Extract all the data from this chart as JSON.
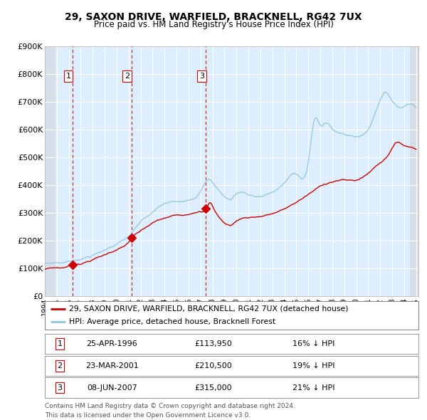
{
  "title": "29, SAXON DRIVE, WARFIELD, BRACKNELL, RG42 7UX",
  "subtitle": "Price paid vs. HM Land Registry's House Price Index (HPI)",
  "footnote1": "Contains HM Land Registry data © Crown copyright and database right 2024.",
  "footnote2": "This data is licensed under the Open Government Licence v3.0.",
  "legend_line1": "29, SAXON DRIVE, WARFIELD, BRACKNELL, RG42 7UX (detached house)",
  "legend_line2": "HPI: Average price, detached house, Bracknell Forest",
  "sales": [
    {
      "num": 1,
      "date": "25-APR-1996",
      "price": 113950,
      "pct": "16%",
      "dir": "↓",
      "x": 1996.31
    },
    {
      "num": 2,
      "date": "23-MAR-2001",
      "price": 210500,
      "pct": "19%",
      "dir": "↓",
      "x": 2001.23
    },
    {
      "num": 3,
      "date": "08-JUN-2007",
      "price": 315000,
      "pct": "21%",
      "dir": "↓",
      "x": 2007.44
    }
  ],
  "hpi_color": "#92c5de",
  "price_color": "#cc0000",
  "vline_color": "#cc0000",
  "bg_color": "#ddeeff",
  "grid_color": "#ffffff",
  "ylim": [
    0,
    900000
  ],
  "xlim_start": 1994.0,
  "xlim_end": 2025.2,
  "yticks": [
    0,
    100000,
    200000,
    300000,
    400000,
    500000,
    600000,
    700000,
    800000,
    900000
  ],
  "ytick_labels": [
    "£0",
    "£100K",
    "£200K",
    "£300K",
    "£400K",
    "£500K",
    "£600K",
    "£700K",
    "£800K",
    "£900K"
  ]
}
